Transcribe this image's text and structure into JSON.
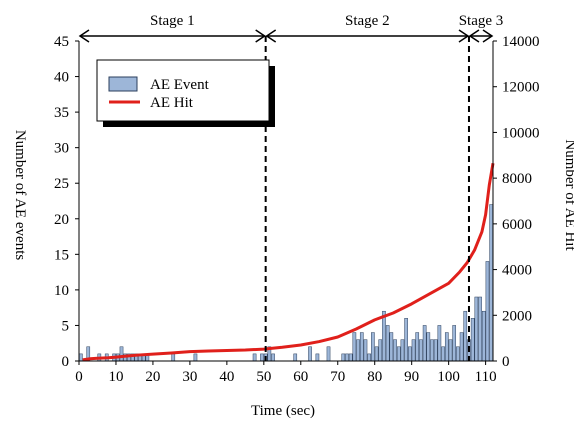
{
  "chart_data": {
    "type": "bar+line",
    "xlabel": "Time (sec)",
    "ylabel_left": "Number of AE events",
    "ylabel_right": "Number of AE Hit",
    "xlim": [
      0,
      112
    ],
    "ylim_left": [
      0,
      45
    ],
    "ylim_right": [
      0,
      14000
    ],
    "x_ticks": [
      0,
      10,
      20,
      30,
      40,
      50,
      60,
      70,
      80,
      90,
      100,
      110
    ],
    "y_left_ticks": [
      0,
      5,
      10,
      15,
      20,
      25,
      30,
      35,
      40,
      45
    ],
    "y_right_ticks": [
      0,
      2000,
      4000,
      6000,
      8000,
      10000,
      12000,
      14000
    ],
    "legend": {
      "placement": "top-left",
      "items": [
        "AE Event",
        "AE Hit"
      ]
    },
    "stages": [
      {
        "label": "Stage 1",
        "start": 0,
        "end": 50.5
      },
      {
        "label": "Stage 2",
        "start": 50.5,
        "end": 105.5
      },
      {
        "label": "Stage 3",
        "start": 105.5,
        "end": 112
      }
    ],
    "stage_boundaries": [
      50.5,
      105.5
    ],
    "series": [
      {
        "name": "AE Event",
        "kind": "bar",
        "axis": "left",
        "color": "#9DB6D8",
        "x": [
          1,
          3,
          6,
          8,
          10,
          11,
          12,
          13,
          14,
          15,
          16,
          17,
          18,
          19,
          26,
          32,
          48,
          50,
          51,
          52,
          53,
          59,
          63,
          65,
          68,
          72,
          73,
          74,
          75,
          76,
          77,
          78,
          79,
          80,
          81,
          82,
          83,
          84,
          85,
          86,
          87,
          88,
          89,
          90,
          91,
          92,
          93,
          94,
          95,
          96,
          97,
          98,
          99,
          100,
          101,
          102,
          103,
          104,
          105,
          106,
          107,
          108,
          109,
          110,
          111,
          112
        ],
        "values": [
          1,
          2,
          1,
          1,
          1,
          1,
          2,
          1,
          1,
          1,
          1,
          1,
          1,
          1,
          1,
          1,
          1,
          1,
          1,
          2,
          1,
          1,
          2,
          1,
          2,
          1,
          1,
          1,
          4,
          3,
          4,
          3,
          1,
          4,
          2,
          3,
          7,
          5,
          4,
          3,
          2,
          3,
          6,
          2,
          3,
          4,
          3,
          5,
          4,
          3,
          3,
          5,
          2,
          4,
          3,
          5,
          2,
          4,
          7,
          3,
          6,
          9,
          9,
          7,
          14,
          22
        ]
      },
      {
        "name": "AE Hit",
        "kind": "line",
        "axis": "right",
        "color": "#E0201B",
        "x": [
          1,
          3,
          5,
          8,
          10,
          13,
          16,
          20,
          25,
          30,
          35,
          40,
          45,
          50,
          55,
          60,
          65,
          70,
          75,
          80,
          85,
          90,
          95,
          100,
          103,
          105,
          107,
          109,
          110,
          111,
          112
        ],
        "values": [
          50,
          100,
          120,
          140,
          170,
          220,
          260,
          300,
          350,
          410,
          440,
          460,
          480,
          520,
          600,
          700,
          850,
          1050,
          1400,
          1800,
          2100,
          2500,
          2950,
          3400,
          3900,
          4300,
          4850,
          5650,
          6400,
          7700,
          8650
        ]
      }
    ]
  }
}
